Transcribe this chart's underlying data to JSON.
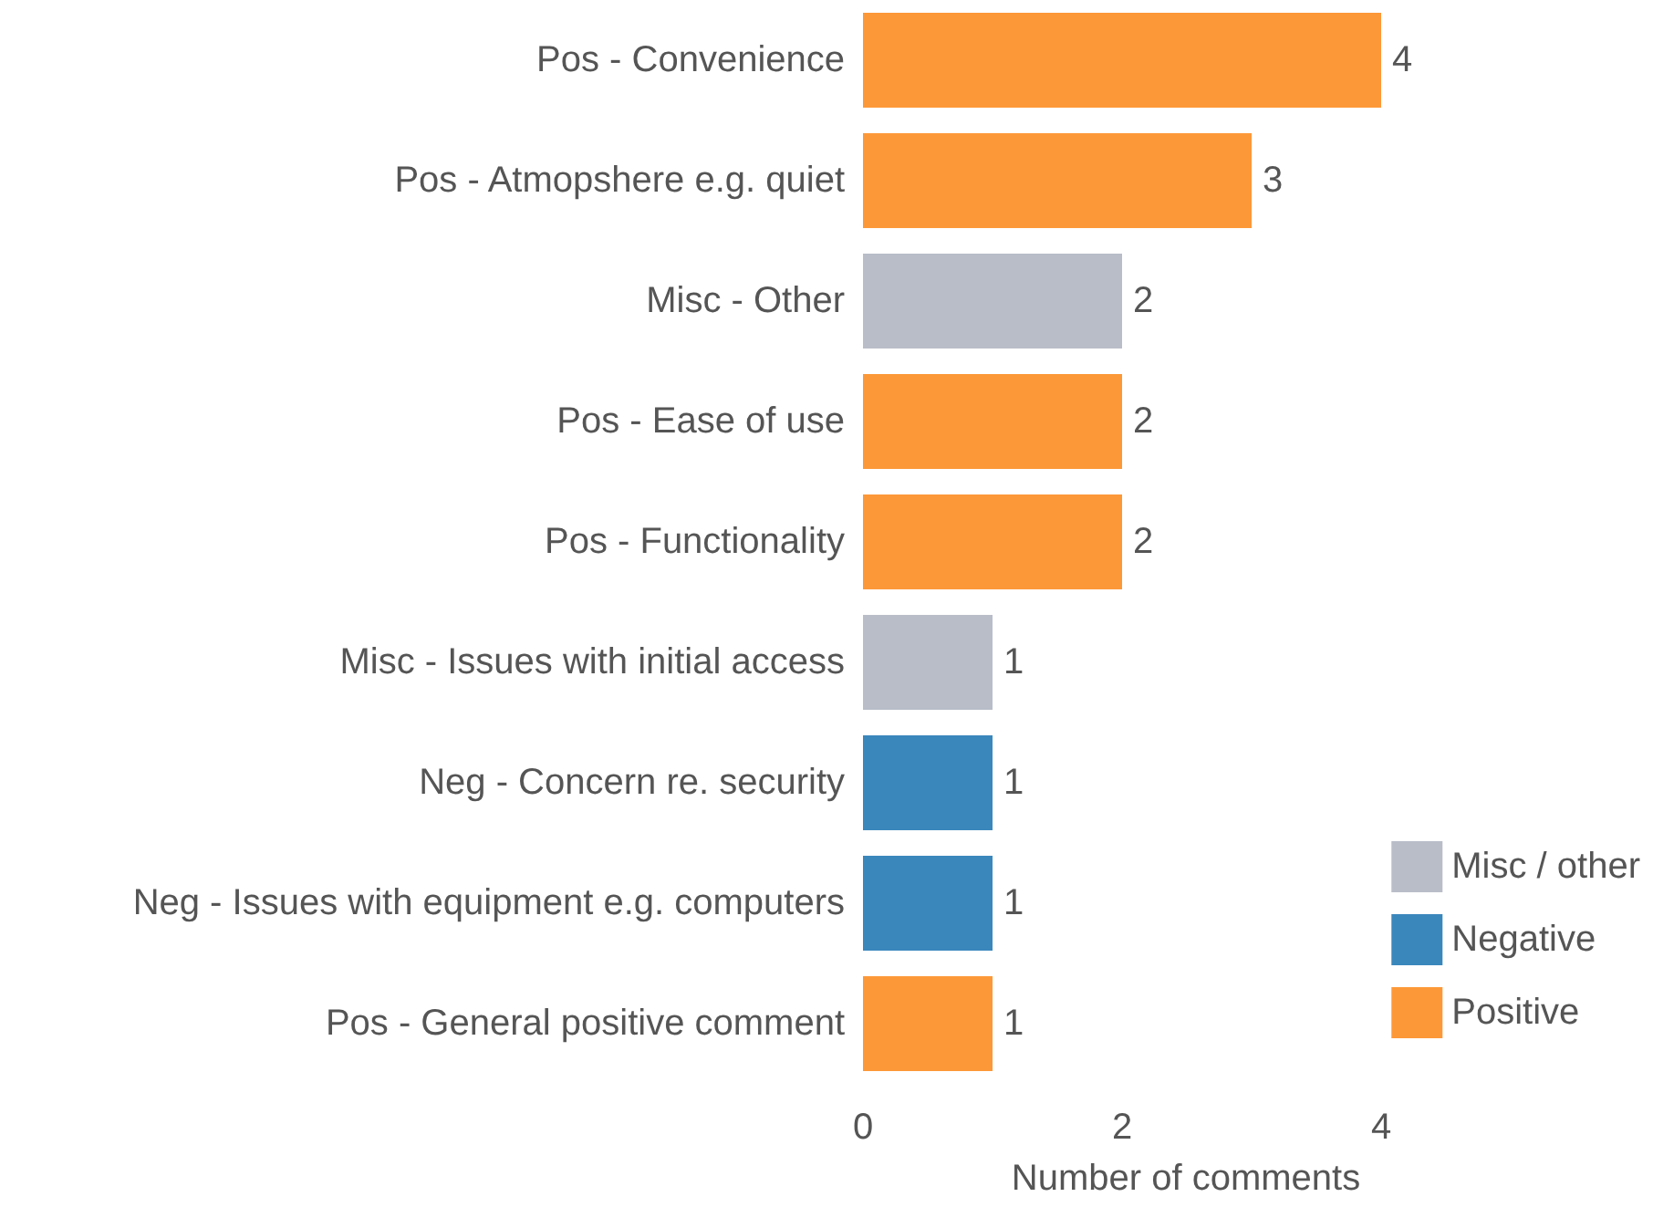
{
  "chart_data": {
    "type": "bar",
    "orientation": "horizontal",
    "xlabel": "Number of comments",
    "categories": [
      "Pos - Convenience",
      "Pos - Atmopshere e.g. quiet",
      "Misc - Other",
      "Pos - Ease of use",
      "Pos - Functionality",
      "Misc - Issues with initial access",
      "Neg - Concern re. security",
      "Neg - Issues with equipment e.g. computers",
      "Pos - General positive comment"
    ],
    "series": [
      {
        "name": "Misc / other",
        "color": "#b8bdc8",
        "values": [
          null,
          null,
          2,
          null,
          null,
          1,
          null,
          null,
          null
        ]
      },
      {
        "name": "Negative",
        "color": "#3a87bc",
        "values": [
          null,
          null,
          null,
          null,
          null,
          null,
          1,
          1,
          null
        ]
      },
      {
        "name": "Positive",
        "color": "#fd9838",
        "values": [
          4,
          3,
          null,
          2,
          2,
          null,
          null,
          null,
          1
        ]
      }
    ],
    "xlim": [
      0,
      4
    ],
    "xticks": [
      0,
      2,
      4
    ],
    "grid": false,
    "legend": "bottom right",
    "data_labels": true
  }
}
